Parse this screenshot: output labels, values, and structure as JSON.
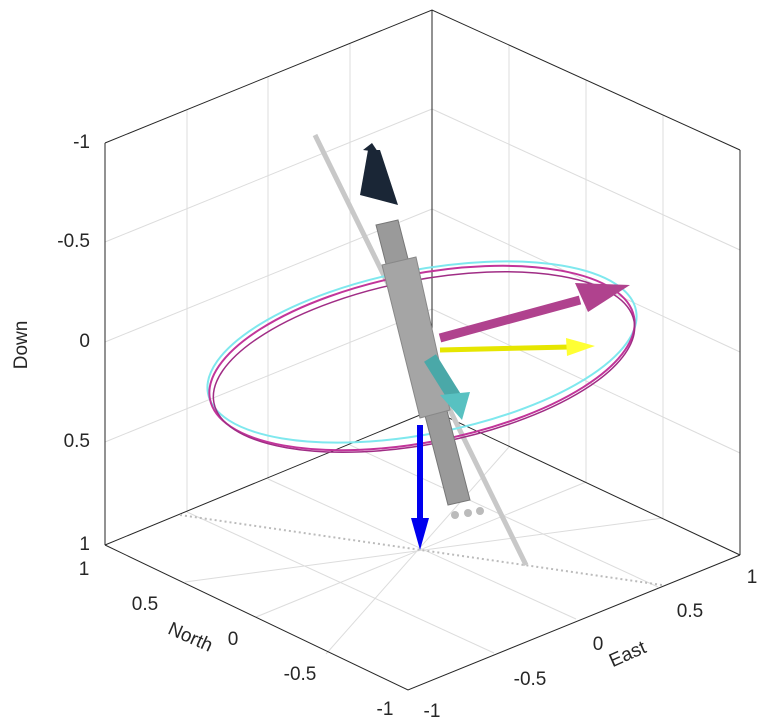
{
  "axes": {
    "down": {
      "label": "Down",
      "ticks": [
        "-1",
        "-0.5",
        "0",
        "0.5",
        "1"
      ]
    },
    "north": {
      "label": "North",
      "ticks": [
        "1",
        "0.5",
        "0",
        "-0.5",
        "-1"
      ]
    },
    "east": {
      "label": "East",
      "ticks": [
        "-1",
        "-0.5",
        "0",
        "0.5",
        "1"
      ]
    }
  }
}
